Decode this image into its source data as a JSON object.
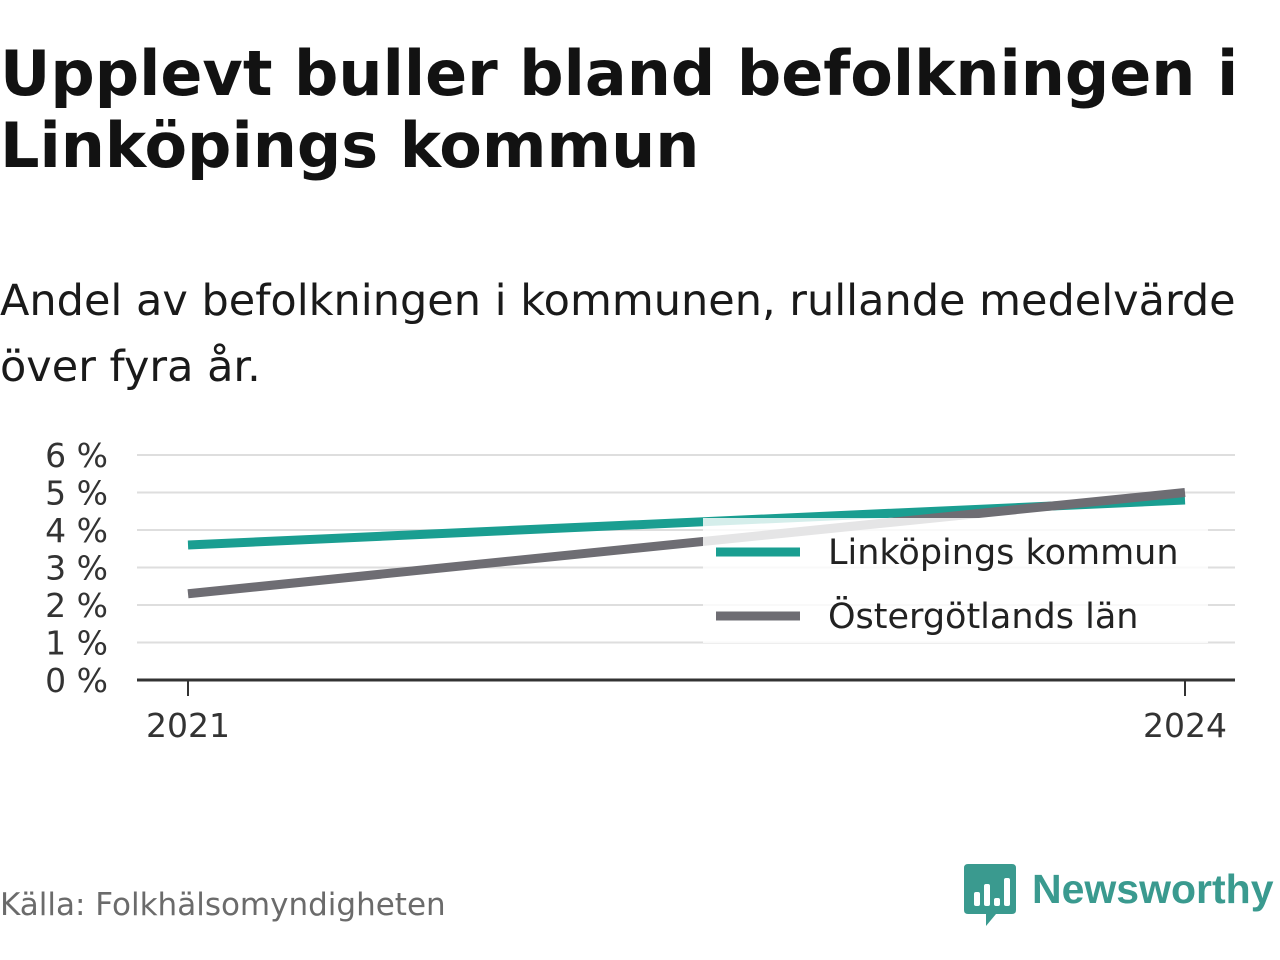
{
  "header": {
    "title": "Upplevt buller bland befolkningen i Linköpings kommun",
    "subtitle": "Andel av befolkningen i kommunen, rullande medelvärde över fyra år."
  },
  "footer": {
    "source": "Källa: Folkhälsomyndigheten",
    "brand": "Newsworthy",
    "brand_logo_icon": "newsworthy-bar-chart-icon",
    "brand_color": "#3a9a8f"
  },
  "chart_data": {
    "type": "line",
    "title": "Upplevt buller bland befolkningen i Linköpings kommun",
    "subtitle": "Andel av befolkningen i kommunen, rullande medelvärde över fyra år.",
    "x": [
      2021,
      2024
    ],
    "x_tick_labels": [
      "2021",
      "2024"
    ],
    "y_ticks": [
      0,
      1,
      2,
      3,
      4,
      5,
      6
    ],
    "y_tick_labels": [
      "0 %",
      "1 %",
      "2 %",
      "3 %",
      "4 %",
      "5 %",
      "6 %"
    ],
    "ylim": [
      0,
      6
    ],
    "grid": true,
    "legend_position": "inside-right",
    "series": [
      {
        "name": "Linköpings kommun",
        "values": [
          3.6,
          4.8
        ],
        "color": "#1a9e91"
      },
      {
        "name": "Östergötlands län",
        "values": [
          2.3,
          5.0
        ],
        "color": "#6e6d73"
      }
    ]
  }
}
